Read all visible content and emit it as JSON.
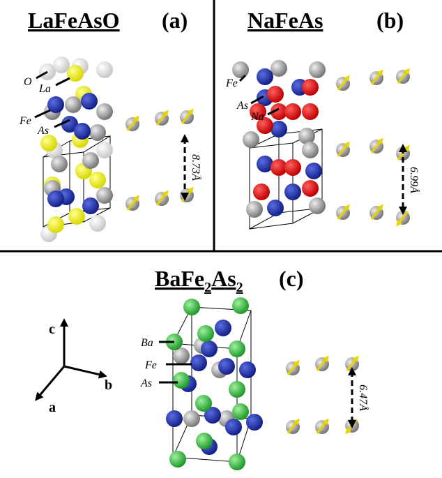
{
  "panels": [
    {
      "title": "LaFeAsO",
      "label": "(a)",
      "atom_labels": [
        "O",
        "La",
        "Fe",
        "As"
      ],
      "distance": "8.73Å"
    },
    {
      "title": "NaFeAs",
      "label": "(b)",
      "atom_labels": [
        "Fe",
        "As",
        "Na"
      ],
      "distance": "6.99Å"
    },
    {
      "title_parts": [
        "BaFe",
        "2",
        "As",
        "2"
      ],
      "label": "(c)",
      "atom_labels": [
        "Ba",
        "Fe",
        "As"
      ],
      "distance": "6.47Å"
    }
  ],
  "axes": [
    "c",
    "b",
    "a"
  ]
}
